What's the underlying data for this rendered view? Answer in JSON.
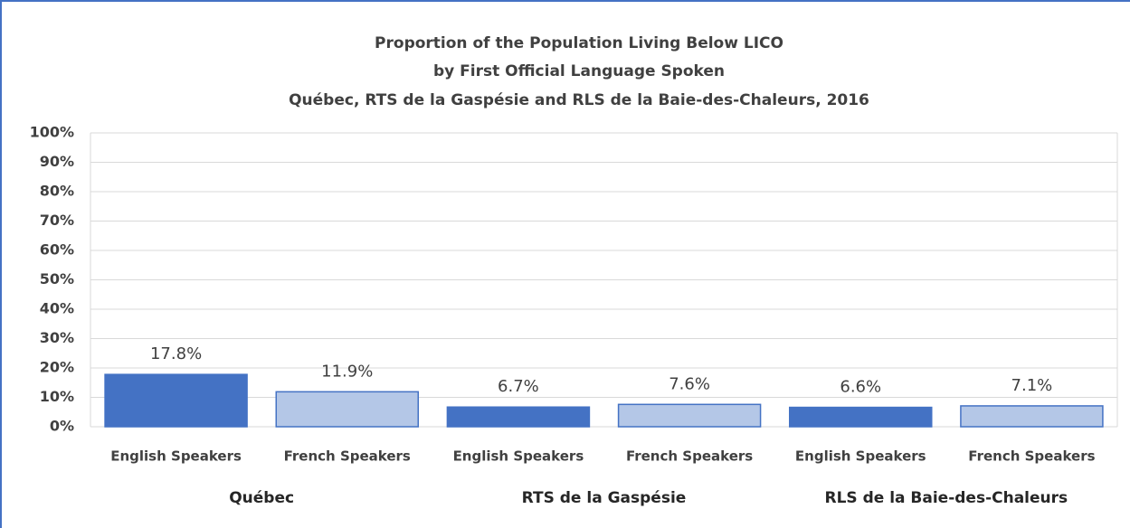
{
  "chart_data": {
    "type": "bar",
    "title": [
      "Proportion of the Population Living Below LICO",
      "by First Official Language Spoken",
      "Québec, RTS de la Gaspésie and RLS de la Baie-des-Chaleurs, 2016"
    ],
    "categories": [
      "English Speakers",
      "French Speakers",
      "English Speakers",
      "French Speakers",
      "English Speakers",
      "French Speakers"
    ],
    "groups": [
      "Québec",
      "RTS de la Gaspésie",
      "RLS de la Baie-des-Chaleurs"
    ],
    "values": [
      17.8,
      11.9,
      6.7,
      7.6,
      6.6,
      7.1
    ],
    "value_labels": [
      "17.8%",
      "11.9%",
      "6.7%",
      "7.6%",
      "6.6%",
      "7.1%"
    ],
    "colors": [
      "#4472c4",
      "#b4c7e7",
      "#4472c4",
      "#b4c7e7",
      "#4472c4",
      "#b4c7e7"
    ],
    "edgecolor": "#4472c4",
    "ylim": [
      0,
      100
    ],
    "yticks": [
      {
        "value": 0,
        "label": "0%"
      },
      {
        "value": 10,
        "label": "10%"
      },
      {
        "value": 20,
        "label": "20%"
      },
      {
        "value": 30,
        "label": "30%"
      },
      {
        "value": 40,
        "label": "40%"
      },
      {
        "value": 50,
        "label": "50%"
      },
      {
        "value": 60,
        "label": "60%"
      },
      {
        "value": 70,
        "label": "70%"
      },
      {
        "value": 80,
        "label": "80%"
      },
      {
        "value": 90,
        "label": "90%"
      },
      {
        "value": 100,
        "label": "100%"
      }
    ],
    "grid": true
  }
}
